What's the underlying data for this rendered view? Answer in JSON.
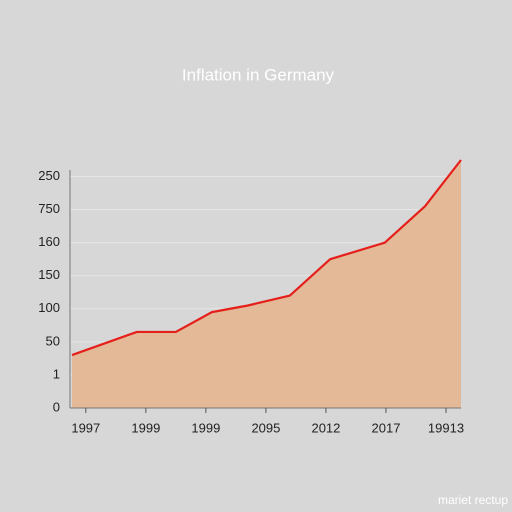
{
  "chart_data": {
    "type": "area",
    "title": "Inflation in Germany",
    "x": [
      -0.23,
      0.85,
      1.5,
      2.1,
      2.7,
      3.4,
      4.07,
      4.98,
      5.65,
      6.25
    ],
    "series": [
      {
        "color": "#e5201b",
        "fill": "#e4b997",
        "values": [
          1.6,
          2.3,
          2.3,
          2.9,
          3.1,
          3.4,
          4.5,
          5.0,
          6.1,
          7.5
        ]
      }
    ],
    "xlim": [
      -0.23,
      6.25
    ],
    "xticks": [
      {
        "value": 0,
        "label": "1997"
      },
      {
        "value": 1,
        "label": "1999"
      },
      {
        "value": 2,
        "label": "1999"
      },
      {
        "value": 3,
        "label": "2095"
      },
      {
        "value": 4,
        "label": "2012"
      },
      {
        "value": 5,
        "label": "2017"
      },
      {
        "value": 6,
        "label": "19913"
      }
    ],
    "ylim": [
      0,
      7.5
    ],
    "yticks": [
      {
        "value": 0,
        "label": "0"
      },
      {
        "value": 1,
        "label": "1"
      },
      {
        "value": 2,
        "label": "50"
      },
      {
        "value": 3,
        "label": "100"
      },
      {
        "value": 4,
        "label": "150"
      },
      {
        "value": 5,
        "label": "160"
      },
      {
        "value": 6,
        "label": "750"
      },
      {
        "value": 7,
        "label": "250"
      }
    ],
    "grid": true,
    "watermark": "mariet rectup"
  }
}
